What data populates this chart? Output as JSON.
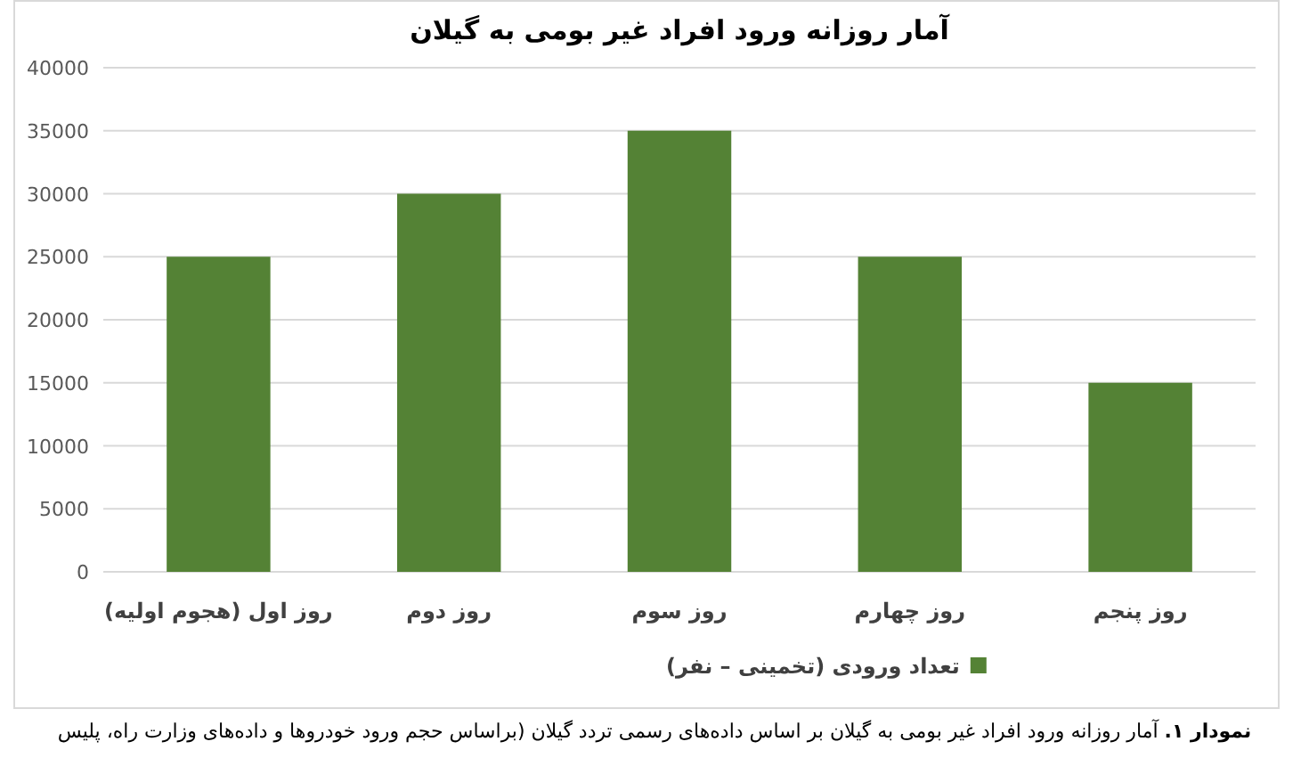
{
  "chart_data": {
    "type": "bar",
    "title": "آمار روزانه ورود افراد غیر بومی به گیلان",
    "categories": [
      "روز اول (هجوم اولیه)",
      "روز دوم",
      "روز سوم",
      "روز چهارم",
      "روز پنجم"
    ],
    "series": [
      {
        "name": "تعداد ورودی (تخمینی – نفر)",
        "color": "#548235",
        "values": [
          25000,
          30000,
          35000,
          25000,
          15000
        ]
      }
    ],
    "ylim": [
      0,
      40000
    ],
    "yticks": [
      0,
      5000,
      10000,
      15000,
      20000,
      25000,
      30000,
      35000,
      40000
    ],
    "grid": "y",
    "legend": "bottom",
    "annotations": [
      "**نمودار ۱.** آمار روزانه ورود افراد غیر بومی به گیلان بر اساس داده‌های رسمی تردد گیلان (براساس حجم ورود خودروها و داده‌های وزارت راه، پلیس"
    ]
  }
}
